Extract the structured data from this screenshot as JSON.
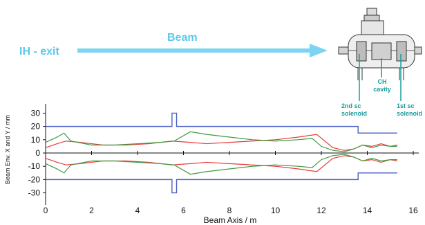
{
  "colors": {
    "beam_text": "#5bc8ec",
    "arrow": "#7fd3f2",
    "aperture": "#4a5fc4",
    "envelope_x": "#e83a3a",
    "envelope_y": "#3f9a3f",
    "label_teal": "#1a9a9a"
  },
  "annotations": {
    "ih_exit": "IH - exit",
    "beam": "Beam",
    "ch_cavity": [
      "CH",
      "cavity"
    ],
    "solenoid_2nd": [
      "2nd sc",
      "solenoid"
    ],
    "solenoid_1st": [
      "1st sc",
      "solenoid"
    ]
  },
  "chart_data": {
    "type": "line",
    "title": "",
    "xlabel": "Beam Axis  /  m",
    "ylabel": "Beam Env. X and Y  /  mm",
    "xlim": [
      0,
      16
    ],
    "ylim": [
      -37,
      37
    ],
    "x_ticks": [
      "0",
      "2",
      "4",
      "6",
      "8",
      "10",
      "12",
      "14",
      "16"
    ],
    "y_ticks": [
      "30",
      "20",
      "10",
      "0",
      "-10",
      "-20",
      "-30"
    ],
    "grid": false,
    "series": [
      {
        "key": "aperture",
        "x": [
          0,
          5.5,
          5.5,
          5.7,
          5.7,
          13.6,
          13.6,
          14.1,
          14.1,
          15.3
        ],
        "y": [
          20,
          20,
          30,
          30,
          20,
          20,
          15,
          15,
          15,
          15
        ]
      },
      {
        "key": "envelope_x",
        "x": [
          0,
          0.5,
          0.9,
          1.5,
          2.5,
          3.5,
          4.5,
          5.5,
          6.3,
          7,
          8,
          9,
          10,
          11,
          11.8,
          12.5,
          13,
          13.4,
          13.8,
          14.2,
          14.6,
          15,
          15.3
        ],
        "y": [
          4,
          7,
          9,
          8,
          6,
          6,
          7,
          9,
          8,
          7,
          8,
          9,
          10,
          12,
          14,
          4,
          2,
          3,
          6,
          5,
          7,
          5,
          6
        ]
      },
      {
        "key": "envelope_y",
        "x": [
          0,
          0.5,
          0.8,
          1.1,
          2,
          3,
          4,
          5,
          5.6,
          6.3,
          7,
          8,
          9,
          10,
          11,
          11.6,
          12,
          12.5,
          13,
          13.4,
          13.8,
          14.2,
          14.6,
          15,
          15.3
        ],
        "y": [
          8,
          12,
          15,
          9,
          6,
          6,
          7,
          8,
          9,
          16,
          14,
          12,
          10,
          9,
          10,
          11,
          5,
          2,
          1,
          3,
          6,
          4,
          6,
          5,
          5
        ]
      }
    ]
  }
}
